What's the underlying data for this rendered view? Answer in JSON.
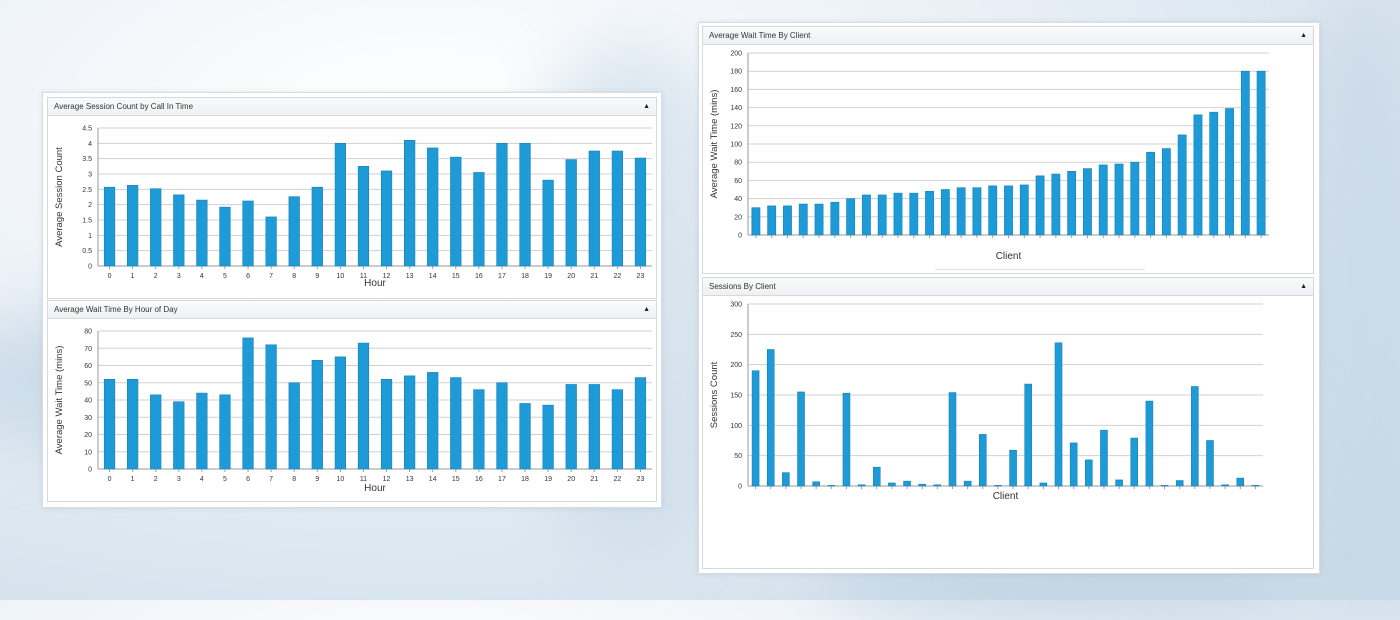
{
  "colors": {
    "bar": "#1e9bd7",
    "bar_stroke": "#1681b5",
    "grid": "#d0d0d0",
    "axis": "#9a9a9a"
  },
  "panels": {
    "session_count": {
      "title": "Average Session Count by Call In Time",
      "collapse_icon": "triangle-up-icon"
    },
    "wait_hour": {
      "title": "Average Wait Time By Hour of Day",
      "collapse_icon": "triangle-up-icon"
    },
    "wait_client": {
      "title": "Average Wait Time By Client",
      "collapse_icon": "triangle-up-icon"
    },
    "sessions_client": {
      "title": "Sessions By Client",
      "collapse_icon": "triangle-up-icon"
    }
  },
  "chart_data": [
    {
      "id": "session_count",
      "type": "bar",
      "title": "Average Session Count by Call In Time",
      "xlabel": "Hour",
      "ylabel": "Average Session Count",
      "categories": [
        "0",
        "1",
        "2",
        "3",
        "4",
        "5",
        "6",
        "7",
        "8",
        "9",
        "10",
        "11",
        "12",
        "13",
        "14",
        "15",
        "16",
        "17",
        "18",
        "19",
        "20",
        "21",
        "22",
        "23"
      ],
      "values": [
        2.57,
        2.63,
        2.52,
        2.32,
        2.15,
        1.92,
        2.12,
        1.6,
        2.26,
        2.57,
        4.0,
        3.25,
        3.1,
        4.1,
        3.85,
        3.55,
        3.05,
        4.0,
        4.0,
        2.8,
        3.47,
        3.75,
        3.75,
        3.52
      ],
      "ylim": [
        0,
        4.5
      ],
      "yticks": [
        "0",
        "0.5",
        "1",
        "1.5",
        "2",
        "2.5",
        "3",
        "3.5",
        "4",
        "4.5"
      ],
      "grid": true
    },
    {
      "id": "wait_hour",
      "type": "bar",
      "title": "Average Wait Time By Hour of Day",
      "xlabel": "Hour",
      "ylabel": "Average Wait Time (mins)",
      "categories": [
        "0",
        "1",
        "2",
        "3",
        "4",
        "5",
        "6",
        "7",
        "8",
        "9",
        "10",
        "11",
        "12",
        "13",
        "14",
        "15",
        "16",
        "17",
        "18",
        "19",
        "20",
        "21",
        "22",
        "23"
      ],
      "values": [
        52,
        52,
        43,
        39,
        44,
        43,
        76,
        72,
        50,
        63,
        65,
        73,
        52,
        54,
        56,
        53,
        46,
        50,
        38,
        37,
        49,
        49,
        46,
        53
      ],
      "ylim": [
        0,
        80
      ],
      "yticks": [
        "0",
        "10",
        "20",
        "30",
        "40",
        "50",
        "60",
        "70",
        "80"
      ],
      "grid": true
    },
    {
      "id": "wait_client",
      "type": "bar",
      "title": "Average Wait Time By Client",
      "xlabel": "Client",
      "ylabel": "Average Wait Time (mins)",
      "values": [
        30,
        32,
        32,
        34,
        34,
        36,
        40,
        44,
        44,
        46,
        46,
        48,
        50,
        52,
        52,
        54,
        54,
        55,
        65,
        67,
        70,
        73,
        77,
        78,
        80,
        91,
        95,
        110,
        132,
        135,
        139,
        180,
        180
      ],
      "ylim": [
        0,
        200
      ],
      "yticks": [
        "0",
        "20",
        "40",
        "60",
        "80",
        "100",
        "120",
        "140",
        "160",
        "180",
        "200"
      ],
      "grid": true
    },
    {
      "id": "sessions_client",
      "type": "bar",
      "title": "Sessions By Client",
      "xlabel": "Client",
      "ylabel": "Sessions Count",
      "values": [
        190,
        225,
        22,
        155,
        7,
        1,
        153,
        2,
        31,
        5,
        8,
        3,
        2,
        154,
        8,
        85,
        1,
        59,
        168,
        5,
        236,
        71,
        43,
        92,
        10,
        79,
        140,
        1,
        9,
        164,
        75,
        2,
        13,
        1
      ],
      "ylim": [
        0,
        300
      ],
      "yticks": [
        "0",
        "50",
        "100",
        "150",
        "200",
        "250",
        "300"
      ],
      "grid": true
    }
  ]
}
